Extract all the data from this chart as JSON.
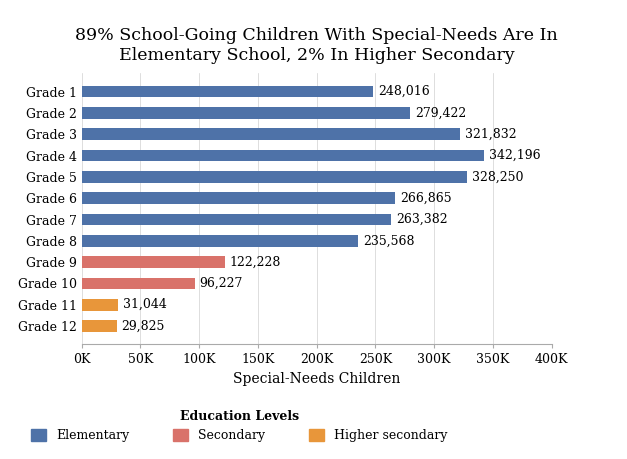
{
  "title": "89% School-Going Children With Special-Needs Are In\nElementary School, 2% In Higher Secondary",
  "xlabel": "Special-Needs Children",
  "categories": [
    "Grade 1",
    "Grade 2",
    "Grade 3",
    "Grade 4",
    "Grade 5",
    "Grade 6",
    "Grade 7",
    "Grade 8",
    "Grade 9",
    "Grade 10",
    "Grade 11",
    "Grade 12"
  ],
  "values": [
    248016,
    279422,
    321832,
    342196,
    328250,
    266865,
    263382,
    235568,
    122228,
    96227,
    31044,
    29825
  ],
  "colors": [
    "#4E72A8",
    "#4E72A8",
    "#4E72A8",
    "#4E72A8",
    "#4E72A8",
    "#4E72A8",
    "#4E72A8",
    "#4E72A8",
    "#D9726A",
    "#D9726A",
    "#E8963A",
    "#E8963A"
  ],
  "labels": [
    "248,016",
    "279,422",
    "321,832",
    "342,196",
    "328,250",
    "266,865",
    "263,382",
    "235,568",
    "122,228",
    "96,227",
    "31,044",
    "29,825"
  ],
  "legend_labels": [
    "Elementary",
    "Secondary",
    "Higher secondary"
  ],
  "legend_colors": [
    "#4E72A8",
    "#D9726A",
    "#E8963A"
  ],
  "legend_title": "Education Levels",
  "xlim": [
    0,
    400000
  ],
  "xticks": [
    0,
    50000,
    100000,
    150000,
    200000,
    250000,
    300000,
    350000,
    400000
  ],
  "xtick_labels": [
    "0K",
    "50K",
    "100K",
    "150K",
    "200K",
    "250K",
    "300K",
    "350K",
    "400K"
  ],
  "title_fontsize": 12.5,
  "axis_fontsize": 10,
  "tick_fontsize": 9,
  "label_fontsize": 9,
  "bar_height": 0.55,
  "background_color": "#FFFFFF"
}
